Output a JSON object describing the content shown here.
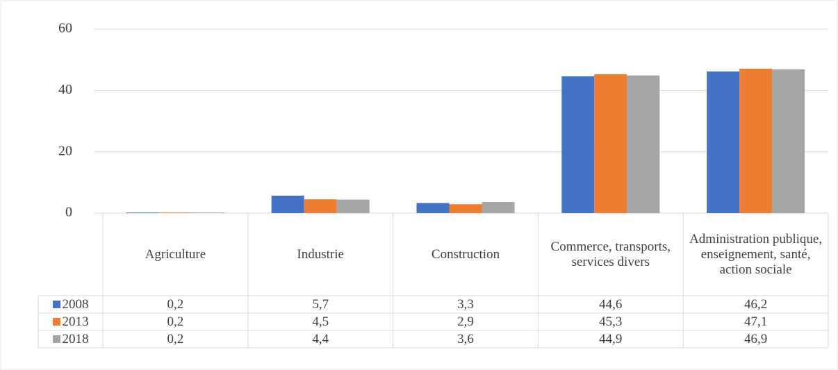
{
  "chart_data": {
    "type": "bar",
    "categories": [
      "Agriculture",
      "Industrie",
      "Construction",
      "Commerce, transports, services divers",
      "Administration publique, enseignement, santé, action sociale"
    ],
    "series": [
      {
        "name": "2008",
        "color": "#4472c4",
        "values": [
          0.2,
          5.7,
          3.3,
          44.6,
          46.2
        ],
        "value_labels": [
          "0,2",
          "5,7",
          "3,3",
          "44,6",
          "46,2"
        ]
      },
      {
        "name": "2013",
        "color": "#ed7d31",
        "values": [
          0.2,
          4.5,
          2.9,
          45.3,
          47.1
        ],
        "value_labels": [
          "0,2",
          "4,5",
          "2,9",
          "45,3",
          "47,1"
        ]
      },
      {
        "name": "2018",
        "color": "#a5a5a5",
        "values": [
          0.2,
          4.4,
          3.6,
          44.9,
          46.9
        ],
        "value_labels": [
          "0,2",
          "4,4",
          "3,6",
          "44,9",
          "46,9"
        ]
      }
    ],
    "ylim": [
      0,
      60
    ],
    "yticks": [
      0,
      20,
      40,
      60
    ],
    "grid": true
  }
}
